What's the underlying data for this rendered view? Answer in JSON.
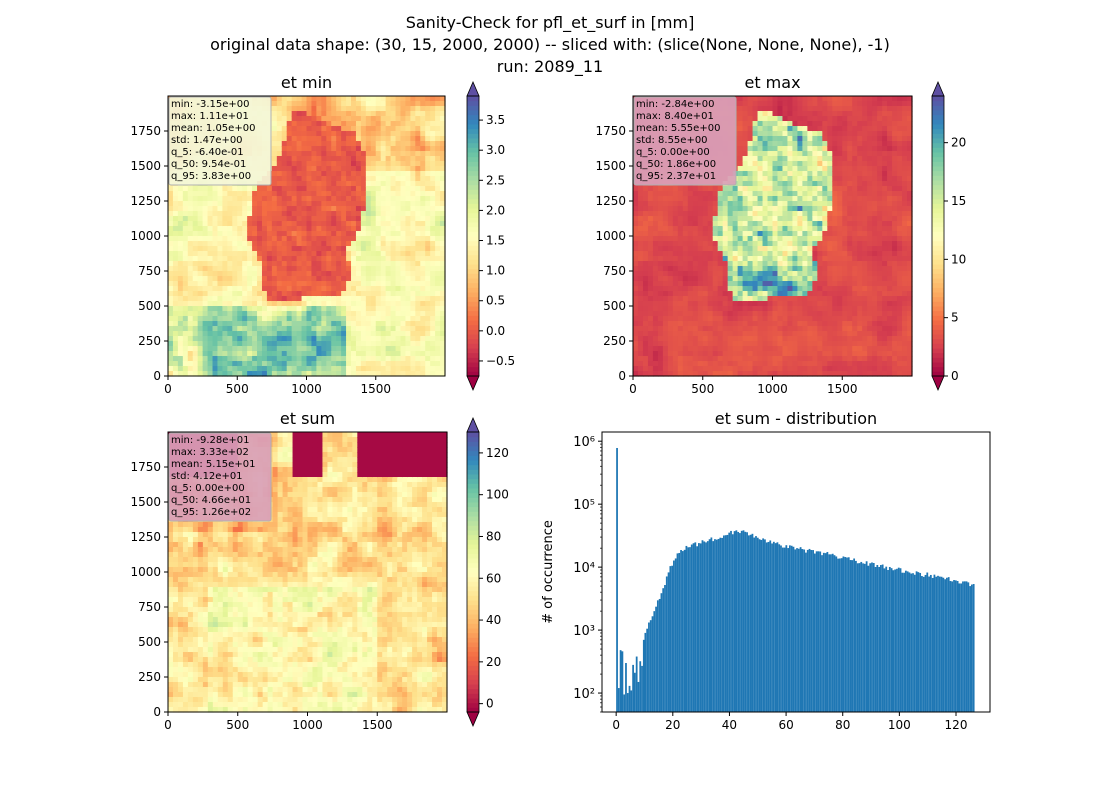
{
  "figure": {
    "title_lines": [
      "Sanity-Check for pfl_et_surf in [mm]",
      "original data shape: (30, 15, 2000, 2000) -- sliced with: (slice(None, None, None), -1)",
      "run: 2089_11"
    ],
    "colormap": "Spectral",
    "hist_color": "#1f77b4"
  },
  "chart_data": [
    {
      "type": "heatmap",
      "title": "et min",
      "xlim": [
        0,
        2000
      ],
      "ylim": [
        0,
        2000
      ],
      "xticks": [
        "0",
        "500",
        "1000",
        "1500"
      ],
      "yticks": [
        "0",
        "250",
        "500",
        "750",
        "1000",
        "1250",
        "1500",
        "1750"
      ],
      "colorbar": {
        "min": -0.75,
        "max": 3.9,
        "ticks": [
          "−0.5",
          "0.0",
          "0.5",
          "1.0",
          "1.5",
          "2.0",
          "2.5",
          "3.0",
          "3.5"
        ],
        "extend": "both"
      },
      "stats": [
        "min: -3.15e+00",
        "max: 1.11e+01",
        "mean: 1.05e+00",
        "std: 1.47e+00",
        "q_5: -6.40e-01",
        "q_50: 9.54e-01",
        "q_95: 3.83e+00"
      ],
      "stats_bg": "#f4f6d8",
      "description_values": {
        "outside_germany": 1.5,
        "inside_germany": -0.4
      }
    },
    {
      "type": "heatmap",
      "title": "et max",
      "xlim": [
        0,
        2000
      ],
      "ylim": [
        0,
        2000
      ],
      "xticks": [
        "0",
        "500",
        "1000",
        "1500"
      ],
      "yticks": [
        "0",
        "250",
        "500",
        "750",
        "1000",
        "1250",
        "1500",
        "1750"
      ],
      "colorbar": {
        "min": 0,
        "max": 24,
        "ticks": [
          "0",
          "5",
          "10",
          "15",
          "20"
        ],
        "extend": "both"
      },
      "stats": [
        "min: -2.84e+00",
        "max: 8.40e+01",
        "mean: 5.55e+00",
        "std: 8.55e+00",
        "q_5: 0.00e+00",
        "q_50: 1.86e+00",
        "q_95: 2.37e+01"
      ],
      "stats_bg": "#d9a0b8"
    },
    {
      "type": "heatmap",
      "title": "et sum",
      "xlim": [
        0,
        2000
      ],
      "ylim": [
        0,
        2000
      ],
      "xticks": [
        "0",
        "500",
        "1000",
        "1500"
      ],
      "yticks": [
        "0",
        "250",
        "500",
        "750",
        "1000",
        "1250",
        "1500",
        "1750"
      ],
      "colorbar": {
        "min": -4,
        "max": 130,
        "ticks": [
          "0",
          "20",
          "40",
          "60",
          "80",
          "100",
          "120"
        ],
        "extend": "both"
      },
      "stats": [
        "min: -9.28e+01",
        "max: 3.33e+02",
        "mean: 5.15e+01",
        "std: 4.12e+01",
        "q_5: 0.00e+00",
        "q_50: 4.66e+01",
        "q_95: 1.26e+02"
      ],
      "stats_bg": "#d9a0b8"
    },
    {
      "type": "bar",
      "title": "et sum - distribution",
      "ylabel": "# of occurrence",
      "xlabel": "",
      "yscale": "log",
      "xlim": [
        -5,
        132
      ],
      "ylim": [
        50,
        1400000
      ],
      "xticks": [
        "0",
        "20",
        "40",
        "60",
        "80",
        "100",
        "120"
      ],
      "yticks": [
        "10²",
        "10³",
        "10⁴",
        "10⁵",
        "10⁶"
      ],
      "bin_width": 0.63,
      "spike": {
        "x": 0,
        "value": 780000
      },
      "low_bins": [
        {
          "x": 0.63,
          "value": 120
        },
        {
          "x": 1.26,
          "value": 480
        },
        {
          "x": 1.89,
          "value": 460
        },
        {
          "x": 2.52,
          "value": 95
        },
        {
          "x": 3.15,
          "value": 300
        },
        {
          "x": 3.78,
          "value": 100
        },
        {
          "x": 4.41,
          "value": 130
        },
        {
          "x": 5.04,
          "value": 110
        },
        {
          "x": 5.67,
          "value": 280
        },
        {
          "x": 6.3,
          "value": 210
        },
        {
          "x": 6.93,
          "value": 380
        },
        {
          "x": 7.56,
          "value": 150
        },
        {
          "x": 8.19,
          "value": 320
        },
        {
          "x": 8.82,
          "value": 270
        },
        {
          "x": 9.45,
          "value": 700
        }
      ],
      "envelope": [
        {
          "x": 10,
          "value": 900
        },
        {
          "x": 12,
          "value": 1600
        },
        {
          "x": 14,
          "value": 2500
        },
        {
          "x": 16,
          "value": 4000
        },
        {
          "x": 18,
          "value": 8000
        },
        {
          "x": 20,
          "value": 13000
        },
        {
          "x": 22,
          "value": 17000
        },
        {
          "x": 25,
          "value": 21000
        },
        {
          "x": 30,
          "value": 25000
        },
        {
          "x": 35,
          "value": 29000
        },
        {
          "x": 40,
          "value": 35000
        },
        {
          "x": 43,
          "value": 38000
        },
        {
          "x": 46,
          "value": 34000
        },
        {
          "x": 50,
          "value": 30000
        },
        {
          "x": 55,
          "value": 24000
        },
        {
          "x": 60,
          "value": 21000
        },
        {
          "x": 65,
          "value": 19000
        },
        {
          "x": 70,
          "value": 17500
        },
        {
          "x": 75,
          "value": 16000
        },
        {
          "x": 80,
          "value": 14000
        },
        {
          "x": 85,
          "value": 12500
        },
        {
          "x": 90,
          "value": 11000
        },
        {
          "x": 95,
          "value": 10000
        },
        {
          "x": 100,
          "value": 9000
        },
        {
          "x": 105,
          "value": 8000
        },
        {
          "x": 110,
          "value": 7500
        },
        {
          "x": 115,
          "value": 7000
        },
        {
          "x": 120,
          "value": 6000
        },
        {
          "x": 124,
          "value": 5500
        },
        {
          "x": 126,
          "value": 5000
        }
      ]
    }
  ]
}
